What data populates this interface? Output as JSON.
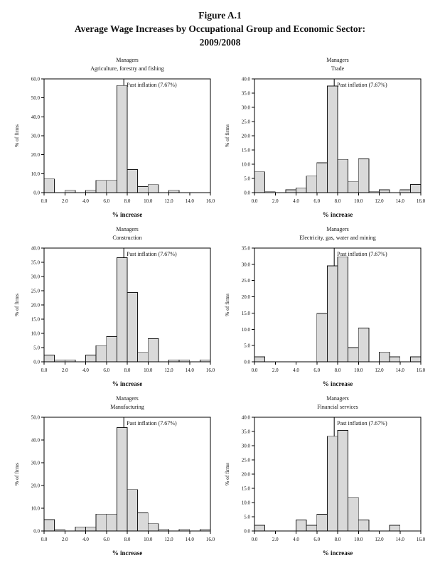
{
  "page": {
    "background": "#ffffff"
  },
  "figure_header": {
    "line1": "Figure A.1",
    "line2": "Average Wage Increases by Occupational Group and Economic Sector:",
    "line3": "2009/2008"
  },
  "style": {
    "bar_fill": "#d9d9d9",
    "bar_stroke": "#1a1a1a",
    "axis_color": "#000000",
    "text_color": "#111111"
  },
  "chart_data": [
    {
      "type": "bar",
      "title_line1": "Managers",
      "title_line2": "Agriculture, forestry and fishing",
      "xlabel": "% increase",
      "ylabel": "% of firms",
      "xlim": [
        0,
        16
      ],
      "x_tick_step": 2,
      "ylim": [
        0,
        60
      ],
      "y_tick_step": 10,
      "bin_width": 1,
      "values": [
        7.2,
        0,
        1.2,
        0,
        1.2,
        6.5,
        6.5,
        56.5,
        12.2,
        3.2,
        4.2,
        0,
        1.2,
        0,
        0,
        0
      ],
      "reference_line": {
        "x": 7.67,
        "label": "Past inflation (7.67%)"
      },
      "grid": false,
      "legend": "none"
    },
    {
      "type": "bar",
      "title_line1": "Managers",
      "title_line2": "Trade",
      "xlabel": "% increase",
      "ylabel": "% of firms",
      "xlim": [
        0,
        16
      ],
      "x_tick_step": 2,
      "ylim": [
        0,
        40
      ],
      "y_tick_step": 5,
      "bin_width": 1,
      "values": [
        7.3,
        0.3,
        0,
        1.0,
        1.7,
        5.8,
        10.5,
        37.5,
        11.7,
        3.8,
        11.9,
        0.3,
        1.0,
        0,
        1.0,
        2.9
      ],
      "reference_line": {
        "x": 7.67,
        "label": "Past inflation (7.67%)"
      },
      "grid": false,
      "legend": "none"
    },
    {
      "type": "bar",
      "title_line1": "Managers",
      "title_line2": "Construction",
      "xlabel": "% increase",
      "ylabel": "% of firms",
      "xlim": [
        0,
        16
      ],
      "x_tick_step": 2,
      "ylim": [
        0,
        40
      ],
      "y_tick_step": 5,
      "bin_width": 1,
      "values": [
        2.4,
        0.7,
        0.7,
        0,
        2.4,
        5.7,
        8.9,
        36.6,
        24.4,
        3.3,
        8.1,
        0,
        0.7,
        0.7,
        0,
        0.7
      ],
      "reference_line": {
        "x": 7.67,
        "label": "Past inflation (7.67%)"
      },
      "grid": false,
      "legend": "none"
    },
    {
      "type": "bar",
      "title_line1": "Managers",
      "title_line2": "Electricity, gas, water and mining",
      "xlabel": "% increase",
      "ylabel": "% of firms",
      "xlim": [
        0,
        16
      ],
      "x_tick_step": 2,
      "ylim": [
        0,
        35
      ],
      "y_tick_step": 5,
      "bin_width": 1,
      "values": [
        1.5,
        0,
        0,
        0,
        0,
        0,
        14.9,
        29.5,
        32.3,
        4.4,
        10.4,
        0,
        3.0,
        1.5,
        0,
        1.5
      ],
      "reference_line": {
        "x": 7.67,
        "label": "Past inflation (7.67%)"
      },
      "grid": false,
      "legend": "none"
    },
    {
      "type": "bar",
      "title_line1": "Managers",
      "title_line2": "Manufacturing",
      "xlabel": "% increase",
      "ylabel": "% of firms",
      "xlim": [
        0,
        16
      ],
      "x_tick_step": 2,
      "ylim": [
        0,
        50
      ],
      "y_tick_step": 10,
      "bin_width": 1,
      "values": [
        5.0,
        0.7,
        0,
        1.8,
        1.8,
        7.4,
        7.4,
        45.5,
        18.2,
        8.0,
        3.2,
        0.7,
        0,
        0.7,
        0,
        0.7
      ],
      "reference_line": {
        "x": 7.67,
        "label": "Past inflation (7.67%)"
      },
      "grid": false,
      "legend": "none"
    },
    {
      "type": "bar",
      "title_line1": "Managers",
      "title_line2": "Financial services",
      "xlabel": "% increase",
      "ylabel": "% of firms",
      "xlim": [
        0,
        16
      ],
      "x_tick_step": 2,
      "ylim": [
        0,
        40
      ],
      "y_tick_step": 5,
      "bin_width": 1,
      "values": [
        2.0,
        0,
        0,
        0,
        3.9,
        2.0,
        5.9,
        33.3,
        35.4,
        11.8,
        3.9,
        0,
        0,
        2.0,
        0,
        0
      ],
      "reference_line": {
        "x": 7.67,
        "label": "Past inflation (7.67%)"
      },
      "grid": false,
      "legend": "none"
    }
  ]
}
